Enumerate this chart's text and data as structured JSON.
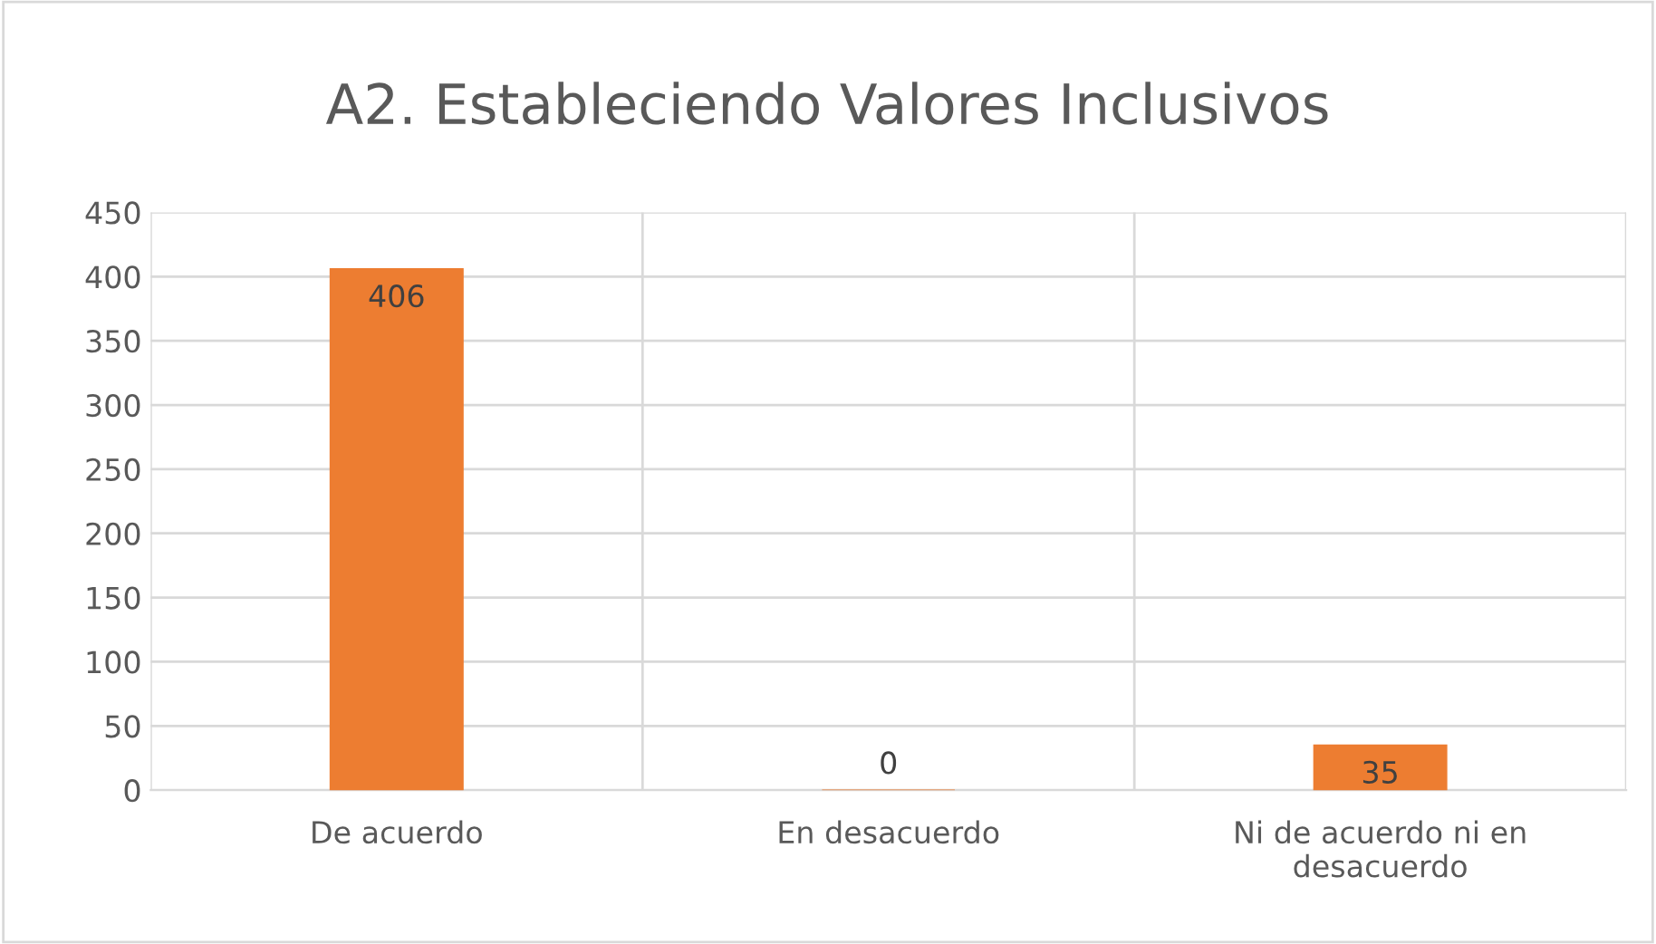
{
  "chart_data": {
    "type": "bar",
    "title": "A2. Estableciendo Valores Inclusivos",
    "categories": [
      "De acuerdo",
      "En desacuerdo",
      "Ni de acuerdo ni en\ndesacuerdo"
    ],
    "values": [
      406,
      0,
      35
    ],
    "color": "#ed7d31",
    "ylim": [
      0,
      450
    ],
    "yticks": [
      0,
      50,
      100,
      150,
      200,
      250,
      300,
      350,
      400,
      450
    ],
    "grid": true,
    "data_labels": true
  }
}
